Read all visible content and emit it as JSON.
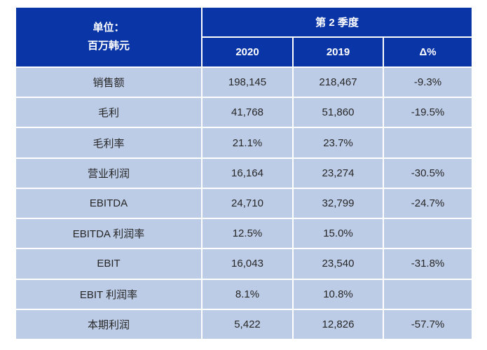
{
  "table": {
    "unit_header": {
      "line1": "单位：",
      "line2": "百万韩元"
    },
    "quarter_header": "第 2 季度",
    "col_headers": [
      "2020",
      "2019",
      "Δ%"
    ],
    "rows": [
      {
        "cells": [
          "销售额",
          "198,145",
          "218,467",
          "-9.3%"
        ]
      },
      {
        "cells": [
          "毛利",
          "41,768",
          "51,860",
          "-19.5%"
        ]
      },
      {
        "cells": [
          "毛利率",
          "21.1%",
          "23.7%",
          ""
        ]
      },
      {
        "cells": [
          "营业利润",
          "16,164",
          "23,274",
          "-30.5%"
        ]
      },
      {
        "cells": [
          "EBITDA",
          "24,710",
          "32,799",
          "-24.7%"
        ]
      },
      {
        "cells": [
          "EBITDA 利润率",
          "12.5%",
          "15.0%",
          ""
        ]
      },
      {
        "cells": [
          "EBIT",
          "16,043",
          "23,540",
          "-31.8%"
        ]
      },
      {
        "cells": [
          "EBIT 利润率",
          "8.1%",
          "10.8%",
          ""
        ]
      },
      {
        "cells": [
          "本期利润",
          "5,422",
          "12,826",
          "-57.7%"
        ]
      }
    ]
  },
  "colors": {
    "header_bg": "#0A35A6",
    "body_bg": "#BDCCE6",
    "header_text": "#FFFFFF",
    "body_text": "#262626",
    "border": "#FFFFFF"
  }
}
